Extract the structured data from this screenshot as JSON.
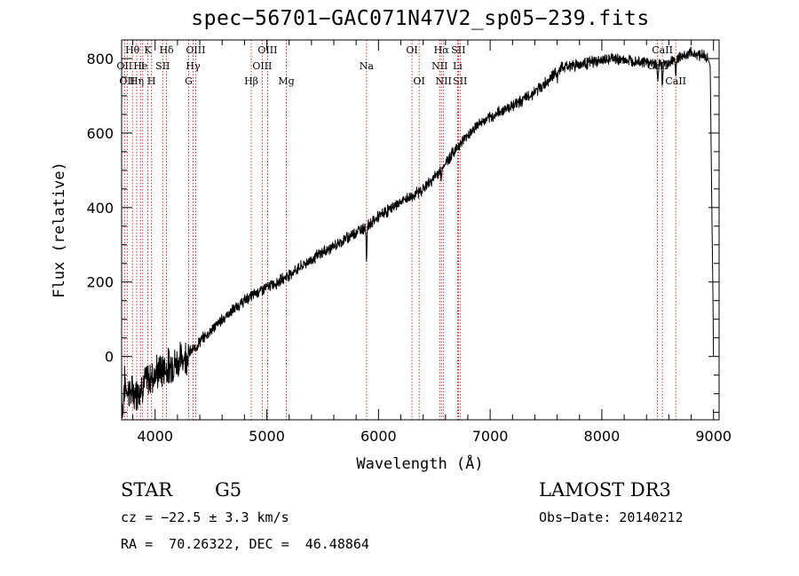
{
  "info": {
    "object_class": "STAR",
    "subclass": "G5",
    "survey": "LAMOST DR3",
    "cz": "cz = −22.5 ± 3.3 km/s",
    "obs_date": "Obs−Date: 20140212",
    "coords": "RA =  70.26322, DEC =  46.48864"
  },
  "chart_data": {
    "type": "line",
    "title": "spec−56701−GAC071N47V2_sp05−239.fits",
    "xlabel": "Wavelength (Å)",
    "ylabel": "Flux (relative)",
    "xlim": [
      3700,
      9050
    ],
    "ylim": [
      -170,
      850
    ],
    "xticks": [
      4000,
      5000,
      6000,
      7000,
      8000,
      9000
    ],
    "yticks": [
      0,
      200,
      400,
      600,
      800
    ],
    "x_minor_step": 200,
    "y_minor_step": 50,
    "line_color": "#000000",
    "marker_color": "#cc0000",
    "noise_amplitude": 12,
    "spectrum_nodes": [
      [
        3700,
        -60
      ],
      [
        3750,
        -90
      ],
      [
        3800,
        -100
      ],
      [
        3850,
        -90
      ],
      [
        3900,
        -70
      ],
      [
        3950,
        -60
      ],
      [
        4000,
        -45
      ],
      [
        4100,
        -30
      ],
      [
        4200,
        -15
      ],
      [
        4300,
        10
      ],
      [
        4350,
        20
      ],
      [
        4400,
        40
      ],
      [
        4500,
        70
      ],
      [
        4600,
        100
      ],
      [
        4700,
        125
      ],
      [
        4800,
        150
      ],
      [
        4900,
        170
      ],
      [
        5000,
        185
      ],
      [
        5100,
        200
      ],
      [
        5200,
        220
      ],
      [
        5300,
        240
      ],
      [
        5400,
        260
      ],
      [
        5500,
        280
      ],
      [
        5600,
        295
      ],
      [
        5700,
        315
      ],
      [
        5800,
        335
      ],
      [
        5900,
        350
      ],
      [
        6000,
        375
      ],
      [
        6100,
        395
      ],
      [
        6200,
        415
      ],
      [
        6300,
        430
      ],
      [
        6400,
        450
      ],
      [
        6500,
        480
      ],
      [
        6600,
        520
      ],
      [
        6700,
        560
      ],
      [
        6800,
        595
      ],
      [
        6900,
        625
      ],
      [
        7000,
        640
      ],
      [
        7100,
        660
      ],
      [
        7200,
        675
      ],
      [
        7300,
        690
      ],
      [
        7400,
        710
      ],
      [
        7500,
        735
      ],
      [
        7600,
        770
      ],
      [
        7700,
        780
      ],
      [
        7800,
        785
      ],
      [
        7900,
        790
      ],
      [
        8000,
        795
      ],
      [
        8100,
        800
      ],
      [
        8200,
        795
      ],
      [
        8300,
        795
      ],
      [
        8400,
        790
      ],
      [
        8500,
        785
      ],
      [
        8600,
        790
      ],
      [
        8700,
        805
      ],
      [
        8800,
        815
      ],
      [
        8900,
        810
      ],
      [
        8950,
        800
      ],
      [
        8970,
        780
      ],
      [
        8985,
        400
      ],
      [
        8995,
        150
      ],
      [
        9000,
        0
      ]
    ],
    "absorption_features": [
      {
        "x": 3710,
        "depth": 90,
        "width": 8
      },
      {
        "x": 5893,
        "depth": 90,
        "width": 5
      },
      {
        "x": 6563,
        "depth": 35,
        "width": 6
      },
      {
        "x": 7600,
        "depth": 25,
        "width": 10
      },
      {
        "x": 8500,
        "depth": 45,
        "width": 6
      },
      {
        "x": 8542,
        "depth": 55,
        "width": 6
      },
      {
        "x": 8662,
        "depth": 45,
        "width": 6
      }
    ],
    "lines": [
      {
        "x": 3726,
        "row": 1,
        "label": "OII"
      },
      {
        "x": 3750,
        "row": 2,
        "label": "OII"
      },
      {
        "x": 3797,
        "row": 0,
        "label": "Hθ"
      },
      {
        "x": 3835,
        "row": 2,
        "label": "Hη"
      },
      {
        "x": 3869,
        "row": 1,
        "label": "He"
      },
      {
        "x": 3889,
        "row": 1,
        "label": "I"
      },
      {
        "x": 3934,
        "row": 0,
        "label": "K"
      },
      {
        "x": 3968,
        "row": 2,
        "label": "H"
      },
      {
        "x": 4068,
        "row": 1,
        "label": "SII"
      },
      {
        "x": 4102,
        "row": 0,
        "label": "Hδ"
      },
      {
        "x": 4300,
        "row": 2,
        "label": "G"
      },
      {
        "x": 4340,
        "row": 1,
        "label": "Hγ"
      },
      {
        "x": 4363,
        "row": 0,
        "label": "OIII"
      },
      {
        "x": 4861,
        "row": 2,
        "label": "Hβ"
      },
      {
        "x": 4959,
        "row": 1,
        "label": "OIII"
      },
      {
        "x": 5007,
        "row": 0,
        "label": "OIII"
      },
      {
        "x": 5175,
        "row": 2,
        "label": "Mg"
      },
      {
        "x": 5893,
        "row": 1,
        "label": "Na"
      },
      {
        "x": 6300,
        "row": 0,
        "label": "OI"
      },
      {
        "x": 6364,
        "row": 2,
        "label": "OI"
      },
      {
        "x": 6548,
        "row": 1,
        "label": "NII"
      },
      {
        "x": 6563,
        "row": 0,
        "label": "Hα"
      },
      {
        "x": 6583,
        "row": 2,
        "label": "NII"
      },
      {
        "x": 6708,
        "row": 1,
        "label": "Li"
      },
      {
        "x": 6716,
        "row": 0,
        "label": "SII"
      },
      {
        "x": 6731,
        "row": 2,
        "label": "SII"
      },
      {
        "x": 8498,
        "row": 1,
        "label": "CaII"
      },
      {
        "x": 8542,
        "row": 0,
        "label": "CaII"
      },
      {
        "x": 8662,
        "row": 2,
        "label": "CaII"
      }
    ]
  }
}
